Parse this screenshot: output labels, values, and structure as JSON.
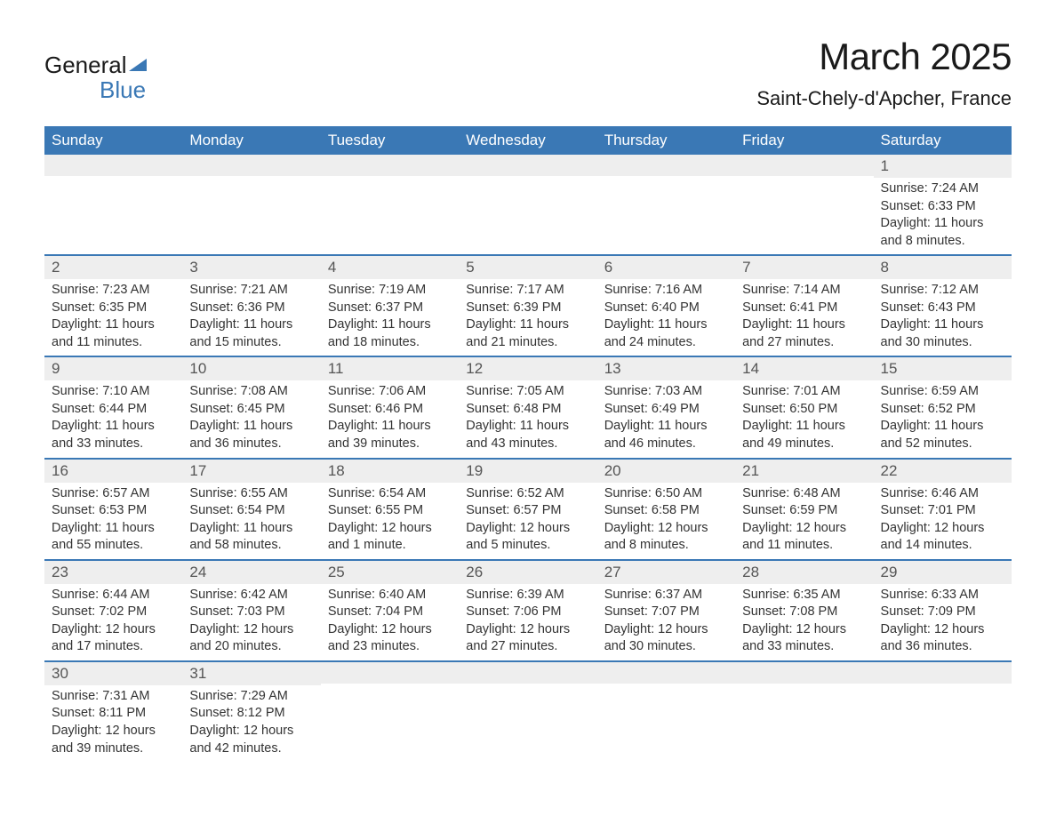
{
  "logo": {
    "text1": "General",
    "text2": "Blue"
  },
  "title": {
    "month": "March 2025",
    "location": "Saint-Chely-d'Apcher, France"
  },
  "colors": {
    "header_bg": "#3a78b5",
    "header_text": "#ffffff",
    "day_number_bg": "#eeeeee",
    "day_number_text": "#555555",
    "body_text": "#333333",
    "border": "#3a78b5"
  },
  "weekdays": [
    "Sunday",
    "Monday",
    "Tuesday",
    "Wednesday",
    "Thursday",
    "Friday",
    "Saturday"
  ],
  "labels": {
    "sunrise": "Sunrise:",
    "sunset": "Sunset:",
    "daylight": "Daylight:"
  },
  "weeks": [
    [
      {
        "day": "",
        "sunrise": "",
        "sunset": "",
        "daylight": ""
      },
      {
        "day": "",
        "sunrise": "",
        "sunset": "",
        "daylight": ""
      },
      {
        "day": "",
        "sunrise": "",
        "sunset": "",
        "daylight": ""
      },
      {
        "day": "",
        "sunrise": "",
        "sunset": "",
        "daylight": ""
      },
      {
        "day": "",
        "sunrise": "",
        "sunset": "",
        "daylight": ""
      },
      {
        "day": "",
        "sunrise": "",
        "sunset": "",
        "daylight": ""
      },
      {
        "day": "1",
        "sunrise": "7:24 AM",
        "sunset": "6:33 PM",
        "daylight": "11 hours and 8 minutes."
      }
    ],
    [
      {
        "day": "2",
        "sunrise": "7:23 AM",
        "sunset": "6:35 PM",
        "daylight": "11 hours and 11 minutes."
      },
      {
        "day": "3",
        "sunrise": "7:21 AM",
        "sunset": "6:36 PM",
        "daylight": "11 hours and 15 minutes."
      },
      {
        "day": "4",
        "sunrise": "7:19 AM",
        "sunset": "6:37 PM",
        "daylight": "11 hours and 18 minutes."
      },
      {
        "day": "5",
        "sunrise": "7:17 AM",
        "sunset": "6:39 PM",
        "daylight": "11 hours and 21 minutes."
      },
      {
        "day": "6",
        "sunrise": "7:16 AM",
        "sunset": "6:40 PM",
        "daylight": "11 hours and 24 minutes."
      },
      {
        "day": "7",
        "sunrise": "7:14 AM",
        "sunset": "6:41 PM",
        "daylight": "11 hours and 27 minutes."
      },
      {
        "day": "8",
        "sunrise": "7:12 AM",
        "sunset": "6:43 PM",
        "daylight": "11 hours and 30 minutes."
      }
    ],
    [
      {
        "day": "9",
        "sunrise": "7:10 AM",
        "sunset": "6:44 PM",
        "daylight": "11 hours and 33 minutes."
      },
      {
        "day": "10",
        "sunrise": "7:08 AM",
        "sunset": "6:45 PM",
        "daylight": "11 hours and 36 minutes."
      },
      {
        "day": "11",
        "sunrise": "7:06 AM",
        "sunset": "6:46 PM",
        "daylight": "11 hours and 39 minutes."
      },
      {
        "day": "12",
        "sunrise": "7:05 AM",
        "sunset": "6:48 PM",
        "daylight": "11 hours and 43 minutes."
      },
      {
        "day": "13",
        "sunrise": "7:03 AM",
        "sunset": "6:49 PM",
        "daylight": "11 hours and 46 minutes."
      },
      {
        "day": "14",
        "sunrise": "7:01 AM",
        "sunset": "6:50 PM",
        "daylight": "11 hours and 49 minutes."
      },
      {
        "day": "15",
        "sunrise": "6:59 AM",
        "sunset": "6:52 PM",
        "daylight": "11 hours and 52 minutes."
      }
    ],
    [
      {
        "day": "16",
        "sunrise": "6:57 AM",
        "sunset": "6:53 PM",
        "daylight": "11 hours and 55 minutes."
      },
      {
        "day": "17",
        "sunrise": "6:55 AM",
        "sunset": "6:54 PM",
        "daylight": "11 hours and 58 minutes."
      },
      {
        "day": "18",
        "sunrise": "6:54 AM",
        "sunset": "6:55 PM",
        "daylight": "12 hours and 1 minute."
      },
      {
        "day": "19",
        "sunrise": "6:52 AM",
        "sunset": "6:57 PM",
        "daylight": "12 hours and 5 minutes."
      },
      {
        "day": "20",
        "sunrise": "6:50 AM",
        "sunset": "6:58 PM",
        "daylight": "12 hours and 8 minutes."
      },
      {
        "day": "21",
        "sunrise": "6:48 AM",
        "sunset": "6:59 PM",
        "daylight": "12 hours and 11 minutes."
      },
      {
        "day": "22",
        "sunrise": "6:46 AM",
        "sunset": "7:01 PM",
        "daylight": "12 hours and 14 minutes."
      }
    ],
    [
      {
        "day": "23",
        "sunrise": "6:44 AM",
        "sunset": "7:02 PM",
        "daylight": "12 hours and 17 minutes."
      },
      {
        "day": "24",
        "sunrise": "6:42 AM",
        "sunset": "7:03 PM",
        "daylight": "12 hours and 20 minutes."
      },
      {
        "day": "25",
        "sunrise": "6:40 AM",
        "sunset": "7:04 PM",
        "daylight": "12 hours and 23 minutes."
      },
      {
        "day": "26",
        "sunrise": "6:39 AM",
        "sunset": "7:06 PM",
        "daylight": "12 hours and 27 minutes."
      },
      {
        "day": "27",
        "sunrise": "6:37 AM",
        "sunset": "7:07 PM",
        "daylight": "12 hours and 30 minutes."
      },
      {
        "day": "28",
        "sunrise": "6:35 AM",
        "sunset": "7:08 PM",
        "daylight": "12 hours and 33 minutes."
      },
      {
        "day": "29",
        "sunrise": "6:33 AM",
        "sunset": "7:09 PM",
        "daylight": "12 hours and 36 minutes."
      }
    ],
    [
      {
        "day": "30",
        "sunrise": "7:31 AM",
        "sunset": "8:11 PM",
        "daylight": "12 hours and 39 minutes."
      },
      {
        "day": "31",
        "sunrise": "7:29 AM",
        "sunset": "8:12 PM",
        "daylight": "12 hours and 42 minutes."
      },
      {
        "day": "",
        "sunrise": "",
        "sunset": "",
        "daylight": ""
      },
      {
        "day": "",
        "sunrise": "",
        "sunset": "",
        "daylight": ""
      },
      {
        "day": "",
        "sunrise": "",
        "sunset": "",
        "daylight": ""
      },
      {
        "day": "",
        "sunrise": "",
        "sunset": "",
        "daylight": ""
      },
      {
        "day": "",
        "sunrise": "",
        "sunset": "",
        "daylight": ""
      }
    ]
  ]
}
